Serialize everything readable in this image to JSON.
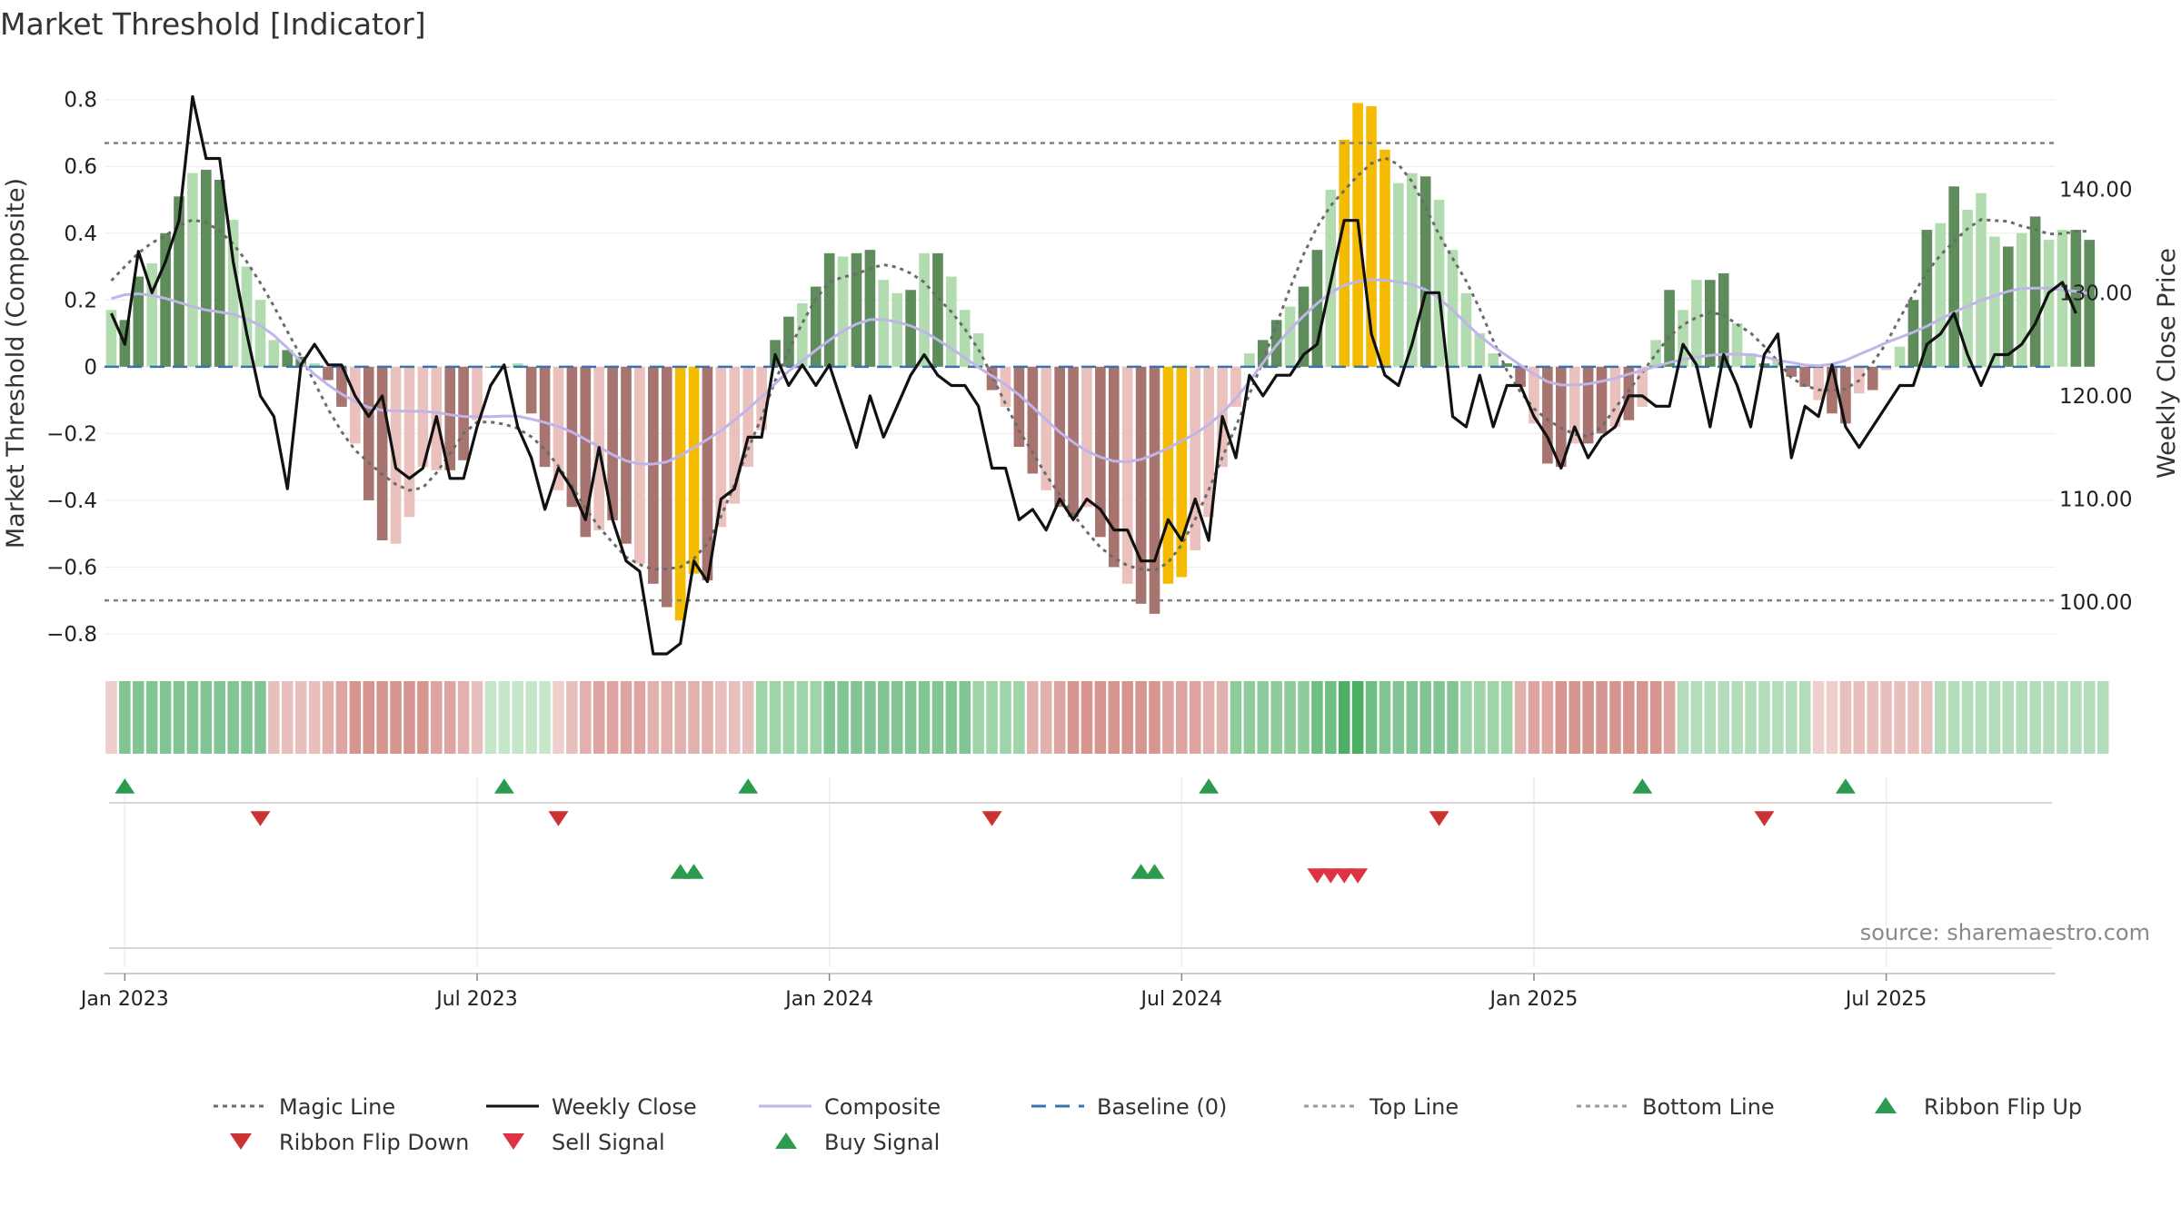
{
  "chart_data": {
    "type": "bar",
    "title": "Market Threshold [Indicator]",
    "ylabel": "Market Threshold (Composite)",
    "y2label": "Weekly Close Price",
    "ylim": [
      -0.86,
      0.84
    ],
    "y2lim": [
      95,
      150
    ],
    "yticks": [
      {
        "v": 0.8,
        "label": "0.8"
      },
      {
        "v": 0.6,
        "label": "0.6"
      },
      {
        "v": 0.4,
        "label": "0.4"
      },
      {
        "v": 0.2,
        "label": "0.2"
      },
      {
        "v": 0,
        "label": "0"
      },
      {
        "v": -0.2,
        "label": "−0.2"
      },
      {
        "v": -0.4,
        "label": "−0.4"
      },
      {
        "v": -0.6,
        "label": "−0.6"
      },
      {
        "v": -0.8,
        "label": "−0.8"
      }
    ],
    "y2ticks": [
      {
        "v": 140,
        "label": "140.00"
      },
      {
        "v": 130,
        "label": "130.00"
      },
      {
        "v": 120,
        "label": "120.00"
      },
      {
        "v": 110,
        "label": "110.00"
      },
      {
        "v": 100,
        "label": "100.00"
      }
    ],
    "xticks": [
      {
        "week": 1,
        "label": "Jan 2023"
      },
      {
        "week": 27,
        "label": "Jul 2023"
      },
      {
        "week": 53,
        "label": "Jan 2024"
      },
      {
        "week": 79,
        "label": "Jul 2024"
      },
      {
        "week": 105,
        "label": "Jan 2025"
      },
      {
        "week": 131,
        "label": "Jul 2025"
      }
    ],
    "top_line": 0.67,
    "bottom_line": -0.7,
    "weeks": 144,
    "composite_bars": [
      0.17,
      0.14,
      0.27,
      0.31,
      0.4,
      0.51,
      0.58,
      0.59,
      0.56,
      0.44,
      0.3,
      0.2,
      0.08,
      0.05,
      0.03,
      0.01,
      -0.04,
      -0.12,
      -0.23,
      -0.4,
      -0.52,
      -0.53,
      -0.45,
      -0.3,
      -0.31,
      -0.31,
      -0.28,
      -0.16,
      0.0,
      0.0,
      0.01,
      -0.14,
      -0.3,
      -0.37,
      -0.42,
      -0.51,
      -0.49,
      -0.46,
      -0.53,
      -0.59,
      -0.65,
      -0.72,
      -0.76,
      -0.62,
      -0.64,
      -0.48,
      -0.41,
      -0.3,
      -0.19,
      0.08,
      0.15,
      0.19,
      0.24,
      0.34,
      0.33,
      0.34,
      0.35,
      0.26,
      0.22,
      0.23,
      0.34,
      0.34,
      0.27,
      0.17,
      0.1,
      -0.07,
      -0.12,
      -0.24,
      -0.32,
      -0.37,
      -0.42,
      -0.45,
      -0.42,
      -0.51,
      -0.6,
      -0.65,
      -0.71,
      -0.74,
      -0.65,
      -0.63,
      -0.55,
      -0.45,
      -0.3,
      -0.12,
      0.04,
      0.08,
      0.14,
      0.18,
      0.24,
      0.35,
      0.53,
      0.68,
      0.79,
      0.78,
      0.65,
      0.55,
      0.58,
      0.57,
      0.5,
      0.35,
      0.22,
      0.1,
      0.04,
      0.01,
      -0.06,
      -0.17,
      -0.29,
      -0.3,
      -0.23,
      -0.23,
      -0.2,
      -0.18,
      -0.16,
      -0.12,
      0.08,
      0.23,
      0.17,
      0.26,
      0.26,
      0.28,
      0.13,
      0.04,
      0.01,
      0.02,
      -0.03,
      -0.06,
      -0.1,
      -0.14,
      -0.17,
      -0.08,
      -0.07,
      -0.01,
      0.06,
      0.2,
      0.41,
      0.43,
      0.54,
      0.47,
      0.52,
      0.39,
      0.36,
      0.4,
      0.45,
      0.38,
      0.41,
      0.41,
      0.38
    ],
    "yellow_bar_weeks": [
      42,
      43,
      78,
      79,
      91,
      92,
      93,
      94
    ],
    "weekly_close": [
      128,
      125,
      134,
      130,
      133,
      137,
      149,
      143,
      143,
      133,
      126,
      120,
      118,
      111,
      123,
      125,
      123,
      123,
      120,
      118,
      120,
      113,
      112,
      113,
      118,
      112,
      112,
      117,
      121,
      123,
      117,
      114,
      109,
      113,
      111,
      108,
      115,
      108,
      104,
      103,
      95,
      95,
      96,
      104,
      102,
      110,
      111,
      116,
      116,
      124,
      121,
      123,
      121,
      123,
      119,
      115,
      120,
      116,
      119,
      122,
      124,
      122,
      121,
      121,
      119,
      113,
      113,
      108,
      109,
      107,
      110,
      108,
      110,
      109,
      107,
      107,
      104,
      104,
      108,
      106,
      110,
      106,
      118,
      114,
      122,
      120,
      122,
      122,
      124,
      125,
      131,
      137,
      137,
      126,
      122,
      121,
      125,
      130,
      130,
      118,
      117,
      122,
      117,
      121,
      121,
      118,
      116,
      113,
      117,
      114,
      116,
      117,
      120,
      120,
      119,
      119,
      125,
      123,
      117,
      124,
      121,
      117,
      124,
      126,
      114,
      119,
      118,
      123,
      117,
      115,
      117,
      119,
      121,
      121,
      125,
      126,
      128,
      124,
      121,
      124,
      124,
      125,
      127,
      130,
      131,
      128
    ]
  },
  "ribbon": {
    "colors": [
      "#efcfcc",
      "#82c594",
      "#82c594",
      "#82c594",
      "#82c594",
      "#82c594",
      "#82c594",
      "#82c594",
      "#82c594",
      "#82c594",
      "#82c594",
      "#82c594",
      "#e7bfbd",
      "#e7bfbd",
      "#e7bfbd",
      "#e7bfbd",
      "#e2b1ae",
      "#dda4a2",
      "#d6958f",
      "#d6958f",
      "#d6958f",
      "#d6958f",
      "#d6958f",
      "#d6958f",
      "#dda4a2",
      "#dda4a2",
      "#e2b1ae",
      "#e7bfbd",
      "#c5e6c8",
      "#c5e6c8",
      "#c5e6c8",
      "#c5e6c8",
      "#c5e6c8",
      "#efcfcc",
      "#e7bfbd",
      "#e2b1ae",
      "#dda4a2",
      "#dda4a2",
      "#dda4a2",
      "#dda4a2",
      "#e2b1ae",
      "#e2b1ae",
      "#e2b1ae",
      "#e2b1ae",
      "#e2b1ae",
      "#e7bfbd",
      "#e7bfbd",
      "#e7bfbd",
      "#9fd3aa",
      "#9fd3aa",
      "#9fd3aa",
      "#9fd3aa",
      "#9fd3aa",
      "#82c594",
      "#82c594",
      "#82c594",
      "#82c594",
      "#82c594",
      "#82c594",
      "#82c594",
      "#82c594",
      "#82c594",
      "#82c594",
      "#82c594",
      "#9fd3aa",
      "#9fd3aa",
      "#9fd3aa",
      "#9fd3aa",
      "#e2b1ae",
      "#e2b1ae",
      "#dda4a2",
      "#d6958f",
      "#d6958f",
      "#d6958f",
      "#d6958f",
      "#d6958f",
      "#d6958f",
      "#d6958f",
      "#dda4a2",
      "#dda4a2",
      "#dda4a2",
      "#e2b1ae",
      "#e2b1ae",
      "#8fcc9c",
      "#8fcc9c",
      "#8fcc9c",
      "#8fcc9c",
      "#8fcc9c",
      "#8fcc9c",
      "#6fbf83",
      "#6fbf83",
      "#4caf63",
      "#4caf63",
      "#6fbf83",
      "#82c594",
      "#82c594",
      "#82c594",
      "#82c594",
      "#82c594",
      "#82c594",
      "#9fd3aa",
      "#9fd3aa",
      "#9fd3aa",
      "#9fd3aa",
      "#e2b1ae",
      "#dda4a2",
      "#dda4a2",
      "#d6958f",
      "#d6958f",
      "#d6958f",
      "#d6958f",
      "#d6958f",
      "#d6958f",
      "#d6958f",
      "#d6958f",
      "#dda4a2",
      "#b3dcbb",
      "#b3dcbb",
      "#b3dcbb",
      "#b3dcbb",
      "#b3dcbb",
      "#b3dcbb",
      "#b3dcbb",
      "#b3dcbb",
      "#b3dcbb",
      "#b3dcbb",
      "#efcfcc",
      "#efcfcc",
      "#e7bfbd",
      "#e7bfbd",
      "#e7bfbd",
      "#e7bfbd",
      "#e7bfbd",
      "#e7bfbd",
      "#e7bfbd",
      "#b3dcbb",
      "#b3dcbb",
      "#b3dcbb",
      "#b3dcbb",
      "#b3dcbb",
      "#b3dcbb",
      "#b3dcbb",
      "#b3dcbb",
      "#b3dcbb",
      "#b3dcbb",
      "#b3dcbb",
      "#b3dcbb",
      "#b3dcbb"
    ]
  },
  "ribbon_flip_up_weeks": [
    1,
    29,
    47,
    81,
    113,
    128
  ],
  "ribbon_flip_down_weeks": [
    11,
    33,
    65,
    98,
    122
  ],
  "buy_signal_weeks": [
    42,
    43,
    76,
    77
  ],
  "sell_signal_weeks": [
    89,
    90,
    91,
    92
  ],
  "source_text": "source: sharemaestro.com",
  "colors": {
    "bar_pos_strong": "#5e8c5b",
    "bar_pos_light": "#b2dcb0",
    "bar_neg_strong": "#a87470",
    "bar_neg_light": "#ebc1bd",
    "bar_extreme": "#f5bb00",
    "close_line": "#111111",
    "composite_line": "#bfb5e8",
    "baseline": "#3a73b1",
    "magic_line": "#6b6b6b",
    "threshold_lines": "#808080",
    "flip_up": "#2d9b4f",
    "flip_down": "#cc3232",
    "sell": "#dd3344",
    "buy": "#2d9b4f"
  },
  "legend": [
    {
      "label": "Magic Line",
      "kind": "dotted",
      "color": "#6b6b6b"
    },
    {
      "label": "Weekly Close",
      "kind": "solid",
      "color": "#111111"
    },
    {
      "label": "Composite",
      "kind": "solid",
      "color": "#bfb5e8"
    },
    {
      "label": "Baseline (0)",
      "kind": "dashed",
      "color": "#3a73b1"
    },
    {
      "label": "Top Line",
      "kind": "dotted",
      "color": "#999999"
    },
    {
      "label": "Bottom Line",
      "kind": "dotted",
      "color": "#999999"
    },
    {
      "label": "Ribbon Flip Up",
      "kind": "tri-up",
      "color": "#2d9b4f"
    },
    {
      "label": "Ribbon Flip Down",
      "kind": "tri-down",
      "color": "#cc3232"
    },
    {
      "label": "Sell Signal",
      "kind": "tri-down",
      "color": "#dd3344"
    },
    {
      "label": "Buy Signal",
      "kind": "tri-up",
      "color": "#2d9b4f"
    }
  ]
}
